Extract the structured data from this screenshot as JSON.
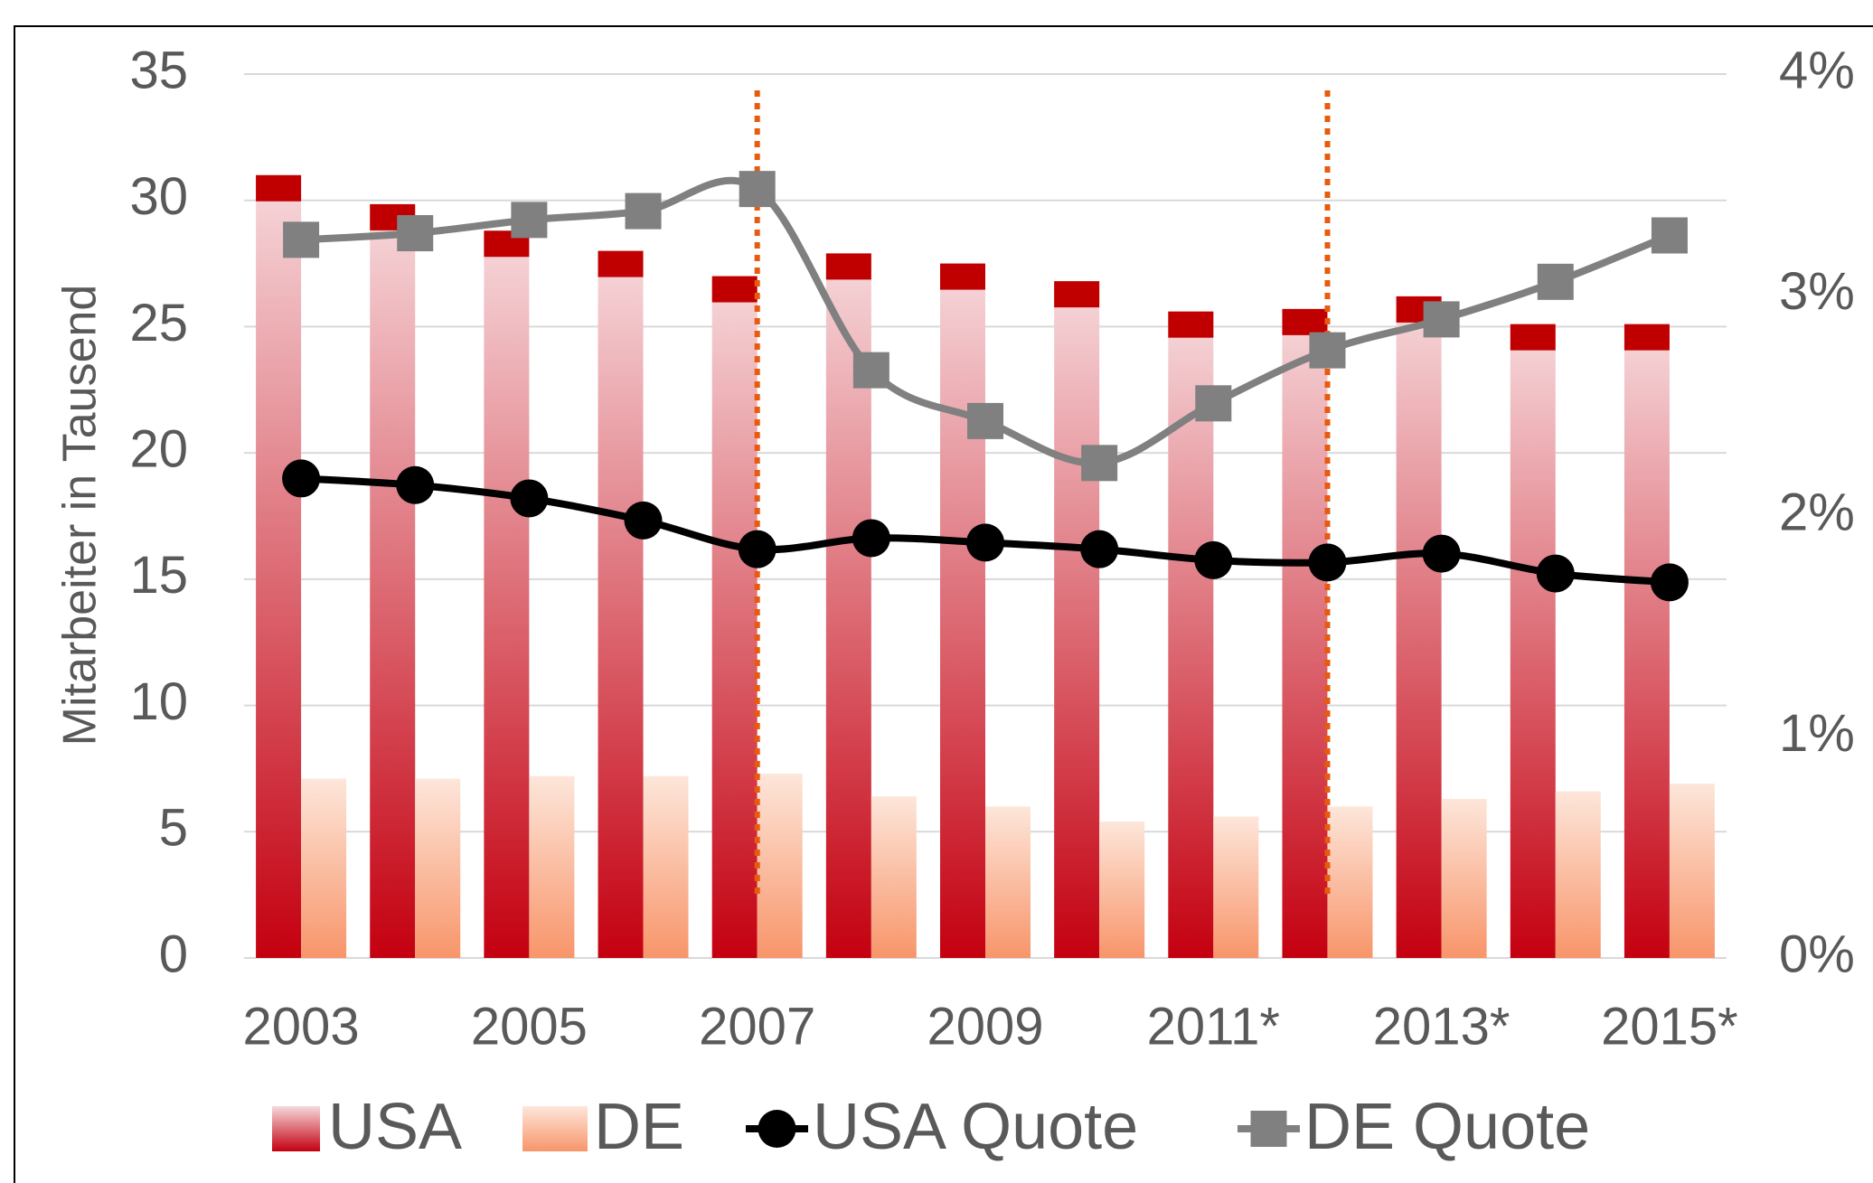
{
  "chart_data": {
    "type": "bar",
    "y_label": "Mitarbeiter in Tausend",
    "categories": [
      "2003",
      null,
      "2005",
      null,
      "2007",
      null,
      "2009",
      null,
      "2011*",
      null,
      "2013*",
      null,
      "2015*"
    ],
    "series": [
      {
        "name": "USA",
        "color": "#c00000",
        "type": "bar",
        "values": [
          31,
          29.85,
          28.8,
          28,
          27,
          27.9,
          27.5,
          26.8,
          25.6,
          25.7,
          26.2,
          25.1,
          25.1
        ]
      },
      {
        "name": "DE",
        "color": "#f8956a",
        "type": "bar",
        "values": [
          7.1,
          7.1,
          7.2,
          7.2,
          7.3,
          6.4,
          6,
          5.4,
          5.6,
          6,
          6.3,
          6.6,
          6.9
        ]
      },
      {
        "name": "USA Quote",
        "color": "#000000",
        "type": "line",
        "axis": "y2",
        "values": [
          2.17,
          2.14,
          2.08,
          1.98,
          1.85,
          1.9,
          1.88,
          1.85,
          1.8,
          1.79,
          1.83,
          1.74,
          1.7
        ]
      },
      {
        "name": "DE Quote",
        "color": "#808080",
        "type": "line",
        "axis": "y2",
        "values": [
          3.25,
          3.28,
          3.34,
          3.38,
          3.48,
          2.66,
          2.43,
          2.24,
          2.51,
          2.75,
          2.89,
          3.06,
          3.27
        ]
      }
    ],
    "ylim": [
      0,
      35
    ],
    "yticks": [
      0,
      5,
      10,
      15,
      20,
      25,
      30,
      35
    ],
    "y2lim": [
      0,
      4
    ],
    "y2ticks": [
      {
        "value": 0,
        "label": "0%"
      },
      {
        "value": 1,
        "label": "1%"
      },
      {
        "value": 2,
        "label": "2%"
      },
      {
        "value": 3,
        "label": "3%"
      },
      {
        "value": 4,
        "label": "4%"
      }
    ],
    "grid": true
  }
}
